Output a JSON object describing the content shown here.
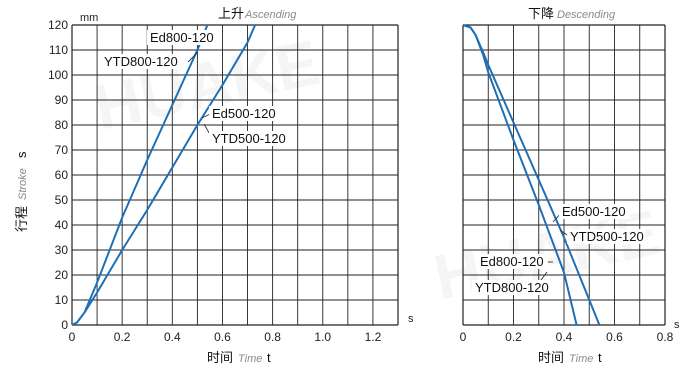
{
  "chart_data": [
    {
      "type": "line",
      "title_cn": "上升",
      "title_en": "Ascending",
      "xlabel_cn": "时间",
      "xlabel_en": "Time",
      "xlabel_sym": "t",
      "ylabel_cn": "行程",
      "ylabel_en": "Stroke",
      "ylabel_sym": "s",
      "y_unit": "mm",
      "x_unit": "s",
      "xlim": [
        0,
        1.3
      ],
      "ylim": [
        0,
        120
      ],
      "xticks": [
        "0",
        "0.2",
        "0.4",
        "0.6",
        "0.8",
        "1.0",
        "1.2"
      ],
      "yticks": [
        "0",
        "10",
        "20",
        "30",
        "40",
        "50",
        "60",
        "70",
        "80",
        "90",
        "100",
        "110",
        "120"
      ],
      "grid": true,
      "series": [
        {
          "name": "Ed800-120",
          "x": [
            0,
            0.02,
            0.05,
            0.1,
            0.2,
            0.3,
            0.4,
            0.5,
            0.54
          ],
          "y": [
            0,
            1,
            5,
            17,
            43,
            66,
            88,
            110,
            120
          ]
        },
        {
          "name": "YTD800-120",
          "x": [
            0,
            0.02,
            0.05,
            0.1,
            0.2,
            0.3,
            0.4,
            0.5,
            0.54
          ],
          "y": [
            0,
            1,
            5,
            17,
            43,
            66,
            88,
            110,
            120
          ]
        },
        {
          "name": "Ed500-120",
          "x": [
            0,
            0.02,
            0.05,
            0.1,
            0.2,
            0.3,
            0.4,
            0.5,
            0.6,
            0.7,
            0.73
          ],
          "y": [
            0,
            1,
            5,
            13,
            30,
            46,
            63,
            80,
            96,
            113,
            120
          ]
        },
        {
          "name": "YTD500-120",
          "x": [
            0,
            0.02,
            0.05,
            0.1,
            0.2,
            0.3,
            0.4,
            0.5,
            0.6,
            0.7,
            0.73
          ],
          "y": [
            0,
            1,
            5,
            13,
            30,
            46,
            63,
            80,
            96,
            113,
            120
          ]
        }
      ]
    },
    {
      "type": "line",
      "title_cn": "下降",
      "title_en": "Descending",
      "xlabel_cn": "时间",
      "xlabel_en": "Time",
      "xlabel_sym": "t",
      "x_unit": "s",
      "xlim": [
        0,
        0.8
      ],
      "ylim": [
        0,
        120
      ],
      "xticks": [
        "0",
        "0.2",
        "0.4",
        "0.6",
        "0.8"
      ],
      "grid": true,
      "series": [
        {
          "name": "Ed500-120",
          "x": [
            0,
            0.03,
            0.05,
            0.08,
            0.1,
            0.2,
            0.3,
            0.4,
            0.5,
            0.54
          ],
          "y": [
            120,
            119,
            116,
            109,
            104,
            81,
            58,
            35,
            10,
            0
          ]
        },
        {
          "name": "YTD500-120",
          "x": [
            0,
            0.03,
            0.05,
            0.08,
            0.1,
            0.2,
            0.3,
            0.4,
            0.5,
            0.54
          ],
          "y": [
            120,
            119,
            116,
            109,
            104,
            81,
            58,
            35,
            10,
            0
          ]
        },
        {
          "name": "Ed800-120",
          "x": [
            0,
            0.03,
            0.05,
            0.08,
            0.1,
            0.2,
            0.3,
            0.4,
            0.45
          ],
          "y": [
            120,
            119,
            116,
            108,
            101,
            74,
            48,
            21,
            0
          ]
        },
        {
          "name": "YTD800-120",
          "x": [
            0,
            0.03,
            0.05,
            0.08,
            0.1,
            0.2,
            0.3,
            0.4,
            0.45
          ],
          "y": [
            120,
            119,
            116,
            108,
            101,
            74,
            48,
            21,
            0
          ]
        }
      ]
    }
  ],
  "colors": {
    "line": "#1f6fb5",
    "grid": "#222222",
    "label_leader": "#333333",
    "watermark": "#000000"
  },
  "watermark": "HUAKE"
}
